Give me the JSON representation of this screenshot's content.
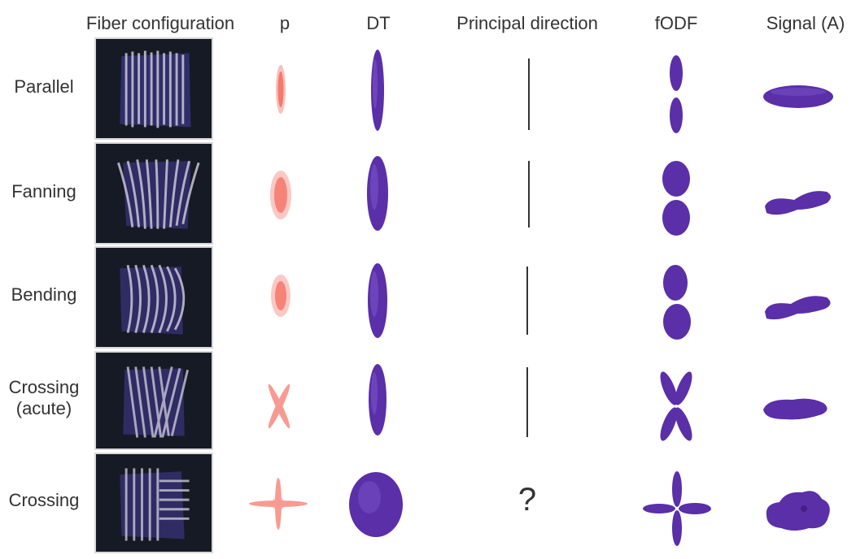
{
  "headers": {
    "fiber_configuration": "Fiber configuration",
    "p": "p",
    "dt": "DT",
    "principal_direction": "Principal direction",
    "fodf": "fODF",
    "signal": "Signal (A)"
  },
  "rows": [
    {
      "label_lines": [
        "Parallel"
      ],
      "principal_direction": "line"
    },
    {
      "label_lines": [
        "Fanning"
      ],
      "principal_direction": "line"
    },
    {
      "label_lines": [
        "Bending"
      ],
      "principal_direction": "line"
    },
    {
      "label_lines": [
        "Crossing",
        "(acute)"
      ],
      "principal_direction": "line"
    },
    {
      "label_lines": [
        "Crossing"
      ],
      "principal_direction": "?"
    }
  ],
  "colors": {
    "glyph_fill": "#5a2fa8",
    "glyph_dark": "#3a1878",
    "p_dots": "#f24a3a",
    "panel_bg": "#161a24",
    "fiber": "#c9c6d8",
    "line": "#333333"
  }
}
